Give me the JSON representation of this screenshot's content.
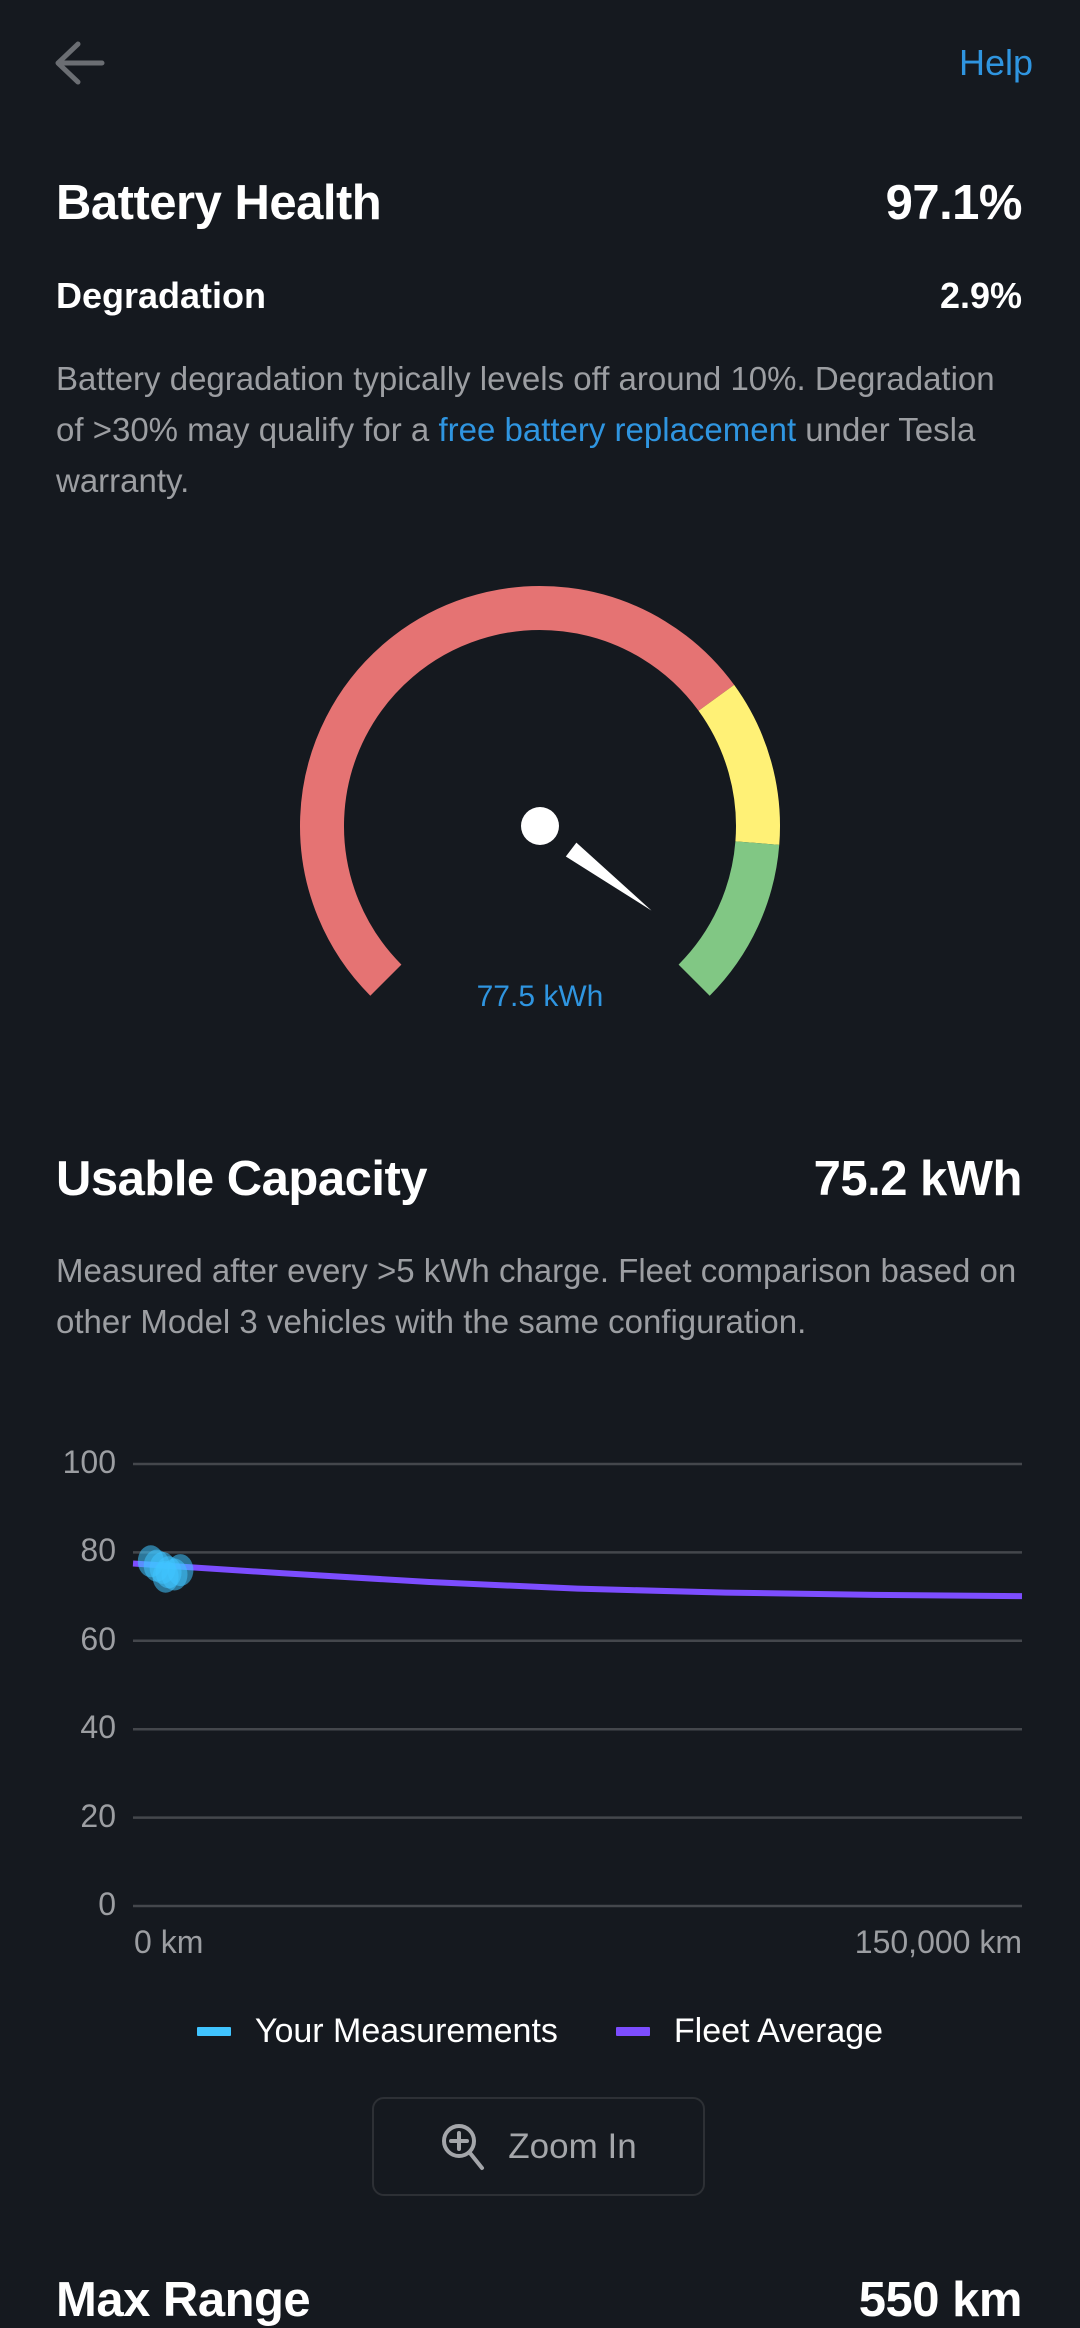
{
  "header": {
    "back_icon": "arrow-left-icon",
    "help_label": "Help"
  },
  "battery_health": {
    "title": "Battery Health",
    "value": "97.1%",
    "degradation_label": "Degradation",
    "degradation_value": "2.9%",
    "description_1": "Battery degradation typically levels off around 10%. Degradation of >30% may qualify for a ",
    "description_link": "free battery replacement",
    "description_2": " under Tesla warranty."
  },
  "gauge": {
    "label": "77.5 kWh",
    "value_percent": 97.1,
    "range": [
      0,
      100
    ],
    "zones": [
      {
        "from": 0,
        "to": 70,
        "color": "#e57373"
      },
      {
        "from": 70,
        "to": 85,
        "color": "#fff176"
      },
      {
        "from": 85,
        "to": 100,
        "color": "#81c784"
      }
    ]
  },
  "usable_capacity": {
    "title": "Usable Capacity",
    "value": "75.2 kWh",
    "description": "Measured after every >5 kWh charge. Fleet comparison based on other Model 3 vehicles with the same configuration."
  },
  "chart_data": {
    "type": "line",
    "xlim": [
      0,
      150000
    ],
    "ylim": [
      0,
      100
    ],
    "y_ticks": [
      "100",
      "80",
      "60",
      "40",
      "20",
      "0"
    ],
    "x_ticks": [
      "0 km",
      "150,000 km"
    ],
    "grid": true,
    "legend_placement": "bottom",
    "series": [
      {
        "name": "Your Measurements",
        "kind": "scatter",
        "color": "#40c4ff",
        "x": [
          3000,
          4000,
          5000,
          6000,
          7000,
          8000,
          5500
        ],
        "y": [
          78,
          77,
          76.5,
          75.5,
          75,
          76,
          74.5
        ]
      },
      {
        "name": "Fleet Average",
        "kind": "line",
        "color": "#7c4dff",
        "x": [
          0,
          25000,
          50000,
          75000,
          100000,
          125000,
          150000
        ],
        "y": [
          77.5,
          75.3,
          73.3,
          71.8,
          70.9,
          70.4,
          70.1
        ]
      }
    ]
  },
  "zoom_button": {
    "label": "Zoom In",
    "icon": "zoom-in-icon"
  },
  "max_range": {
    "title": "Max Range",
    "value": "550 km"
  }
}
